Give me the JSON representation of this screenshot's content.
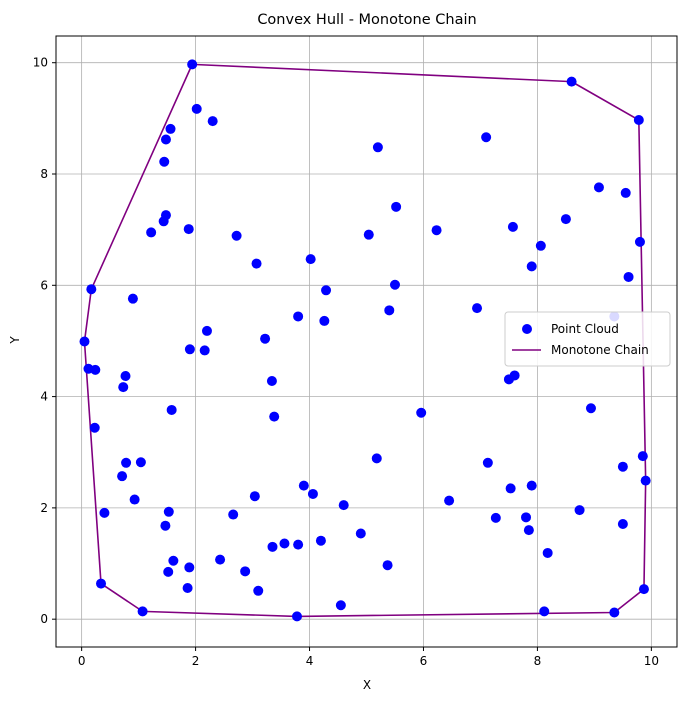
{
  "chart_data": {
    "type": "scatter",
    "title": "Convex Hull - Monotone Chain",
    "xlabel": "X",
    "ylabel": "Y",
    "xlim": [
      -0.45,
      10.45
    ],
    "ylim": [
      -0.5,
      10.48
    ],
    "xticks": [
      0,
      2,
      4,
      6,
      8,
      10
    ],
    "yticks": [
      0,
      2,
      4,
      6,
      8,
      10
    ],
    "grid": true,
    "legend_position": "center-right",
    "series": [
      {
        "name": "Point Cloud",
        "kind": "scatter",
        "color": "#0000ff",
        "points": [
          [
            1.94,
            9.97
          ],
          [
            8.6,
            9.66
          ],
          [
            9.78,
            8.97
          ],
          [
            2.02,
            9.17
          ],
          [
            2.3,
            8.95
          ],
          [
            1.56,
            8.81
          ],
          [
            1.48,
            8.62
          ],
          [
            7.1,
            8.66
          ],
          [
            5.2,
            8.48
          ],
          [
            1.45,
            8.22
          ],
          [
            9.08,
            7.76
          ],
          [
            9.55,
            7.66
          ],
          [
            5.52,
            7.41
          ],
          [
            1.48,
            7.26
          ],
          [
            1.44,
            7.15
          ],
          [
            8.5,
            7.19
          ],
          [
            7.57,
            7.05
          ],
          [
            1.88,
            7.01
          ],
          [
            1.22,
            6.95
          ],
          [
            6.23,
            6.99
          ],
          [
            5.04,
            6.91
          ],
          [
            2.72,
            6.89
          ],
          [
            9.8,
            6.78
          ],
          [
            8.06,
            6.71
          ],
          [
            4.02,
            6.47
          ],
          [
            3.07,
            6.39
          ],
          [
            7.9,
            6.34
          ],
          [
            9.6,
            6.15
          ],
          [
            0.17,
            5.93
          ],
          [
            5.5,
            6.01
          ],
          [
            4.29,
            5.91
          ],
          [
            0.9,
            5.76
          ],
          [
            6.94,
            5.59
          ],
          [
            5.4,
            5.55
          ],
          [
            9.35,
            5.44
          ],
          [
            3.8,
            5.44
          ],
          [
            4.26,
            5.36
          ],
          [
            2.2,
            5.18
          ],
          [
            3.22,
            5.04
          ],
          [
            0.05,
            4.99
          ],
          [
            1.9,
            4.85
          ],
          [
            2.16,
            4.83
          ],
          [
            0.12,
            4.5
          ],
          [
            0.24,
            4.48
          ],
          [
            0.77,
            4.37
          ],
          [
            7.6,
            4.38
          ],
          [
            7.5,
            4.31
          ],
          [
            3.34,
            4.28
          ],
          [
            0.73,
            4.17
          ],
          [
            8.94,
            3.79
          ],
          [
            1.58,
            3.76
          ],
          [
            5.96,
            3.71
          ],
          [
            3.38,
            3.64
          ],
          [
            0.23,
            3.44
          ],
          [
            9.85,
            2.93
          ],
          [
            5.18,
            2.89
          ],
          [
            7.13,
            2.81
          ],
          [
            0.78,
            2.81
          ],
          [
            1.04,
            2.82
          ],
          [
            9.5,
            2.74
          ],
          [
            0.71,
            2.57
          ],
          [
            9.9,
            2.49
          ],
          [
            3.9,
            2.4
          ],
          [
            7.9,
            2.4
          ],
          [
            7.53,
            2.35
          ],
          [
            4.06,
            2.25
          ],
          [
            3.04,
            2.21
          ],
          [
            0.93,
            2.15
          ],
          [
            6.45,
            2.13
          ],
          [
            4.6,
            2.05
          ],
          [
            8.74,
            1.96
          ],
          [
            1.53,
            1.93
          ],
          [
            0.4,
            1.91
          ],
          [
            2.66,
            1.88
          ],
          [
            7.27,
            1.82
          ],
          [
            7.8,
            1.83
          ],
          [
            9.5,
            1.71
          ],
          [
            1.47,
            1.68
          ],
          [
            7.85,
            1.6
          ],
          [
            4.9,
            1.54
          ],
          [
            4.2,
            1.41
          ],
          [
            3.56,
            1.36
          ],
          [
            3.8,
            1.34
          ],
          [
            3.35,
            1.3
          ],
          [
            8.18,
            1.19
          ],
          [
            2.43,
            1.07
          ],
          [
            1.61,
            1.05
          ],
          [
            5.37,
            0.97
          ],
          [
            1.89,
            0.93
          ],
          [
            2.87,
            0.86
          ],
          [
            1.52,
            0.85
          ],
          [
            0.34,
            0.64
          ],
          [
            1.86,
            0.56
          ],
          [
            9.87,
            0.54
          ],
          [
            3.1,
            0.51
          ],
          [
            4.55,
            0.25
          ],
          [
            1.07,
            0.14
          ],
          [
            8.12,
            0.14
          ],
          [
            9.35,
            0.12
          ],
          [
            3.78,
            0.05
          ]
        ]
      },
      {
        "name": "Monotone Chain",
        "kind": "line",
        "color": "#800080",
        "points": [
          [
            0.05,
            4.99
          ],
          [
            0.34,
            0.64
          ],
          [
            1.07,
            0.14
          ],
          [
            3.78,
            0.05
          ],
          [
            9.35,
            0.12
          ],
          [
            9.87,
            0.54
          ],
          [
            9.9,
            2.49
          ],
          [
            9.78,
            8.97
          ],
          [
            8.6,
            9.66
          ],
          [
            1.94,
            9.97
          ],
          [
            0.17,
            5.93
          ],
          [
            0.05,
            4.99
          ]
        ]
      }
    ]
  }
}
